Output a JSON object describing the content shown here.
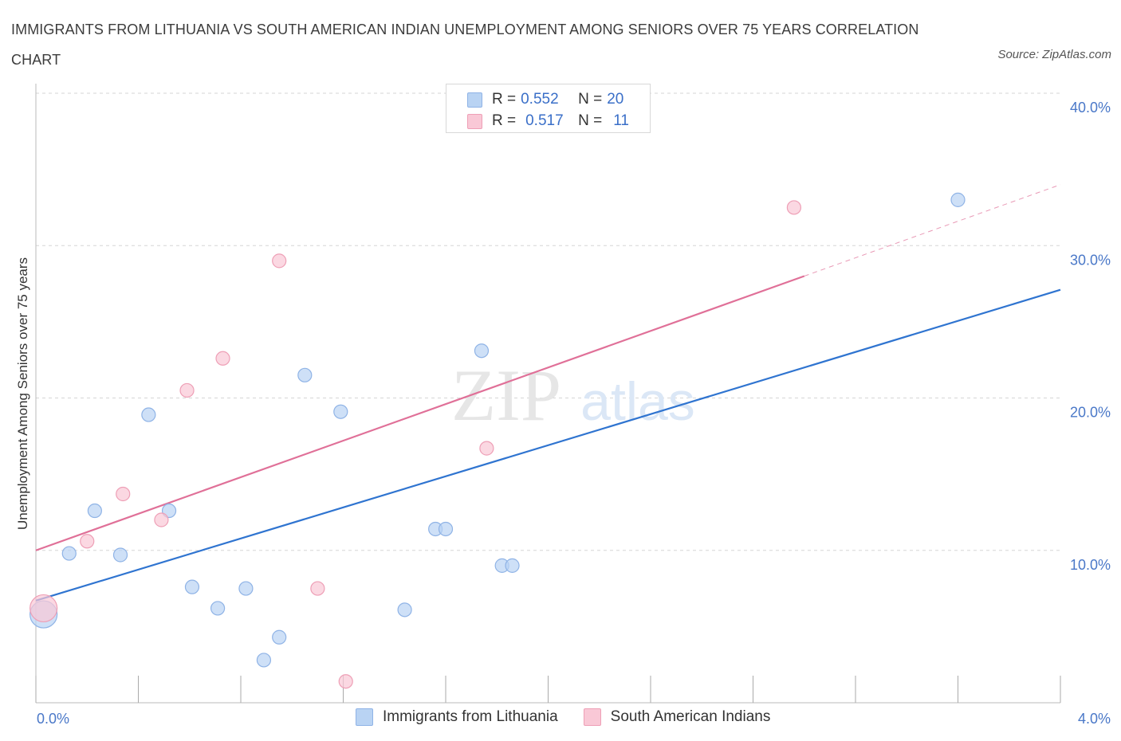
{
  "title": "IMMIGRANTS FROM LITHUANIA VS SOUTH AMERICAN INDIAN UNEMPLOYMENT AMONG SENIORS OVER 75 YEARS CORRELATION CHART",
  "source": "Source: ZipAtlas.com",
  "watermark": {
    "zip": "ZIP",
    "atlas": "atlas"
  },
  "colors": {
    "blue_fill": "#b9d3f3",
    "blue_stroke": "#8fb3e6",
    "blue_line": "#2f74d0",
    "pink_fill": "#f9c8d6",
    "pink_stroke": "#ee9fb6",
    "pink_line": "#e07098",
    "grid": "#d6d6d6",
    "axis_label": "#4a78c8"
  },
  "legend": {
    "rows": [
      {
        "r_label": "R = ",
        "r_value": "0.552",
        "n_label": "N = ",
        "n_value": "20"
      },
      {
        "r_label": "R = ",
        "r_value": "0.517",
        "n_label": "N = ",
        "n_value": "11"
      }
    ]
  },
  "chart_data": {
    "type": "scatter",
    "title": "IMMIGRANTS FROM LITHUANIA VS SOUTH AMERICAN INDIAN UNEMPLOYMENT AMONG SENIORS OVER 75 YEARS CORRELATION CHART",
    "xlabel": "",
    "ylabel": "Unemployment Among Seniors over 75 years",
    "xlim": [
      0.0,
      4.0
    ],
    "ylim": [
      0.0,
      40.0
    ],
    "x_tick_labels": [
      "0.0%",
      "4.0%"
    ],
    "y_ticks": [
      10.0,
      20.0,
      30.0,
      40.0
    ],
    "y_tick_labels": [
      "10.0%",
      "20.0%",
      "30.0%",
      "40.0%"
    ],
    "grid": true,
    "series": [
      {
        "name": "Immigrants from Lithuania",
        "color": "#b9d3f3",
        "points": [
          {
            "x": 0.03,
            "y": 5.8,
            "size": "large"
          },
          {
            "x": 0.13,
            "y": 9.8
          },
          {
            "x": 0.23,
            "y": 12.6
          },
          {
            "x": 0.33,
            "y": 9.7
          },
          {
            "x": 0.44,
            "y": 18.9
          },
          {
            "x": 0.52,
            "y": 12.6
          },
          {
            "x": 0.61,
            "y": 7.6
          },
          {
            "x": 0.71,
            "y": 6.2
          },
          {
            "x": 0.82,
            "y": 7.5
          },
          {
            "x": 0.89,
            "y": 2.8
          },
          {
            "x": 0.95,
            "y": 4.3
          },
          {
            "x": 1.05,
            "y": 21.5
          },
          {
            "x": 1.19,
            "y": 19.1
          },
          {
            "x": 1.44,
            "y": 6.1
          },
          {
            "x": 1.56,
            "y": 11.4
          },
          {
            "x": 1.6,
            "y": 11.4
          },
          {
            "x": 1.74,
            "y": 23.1
          },
          {
            "x": 1.82,
            "y": 9.0
          },
          {
            "x": 1.86,
            "y": 9.0
          },
          {
            "x": 3.6,
            "y": 33.0
          }
        ],
        "trend": {
          "x": [
            0.0,
            4.0
          ],
          "y": [
            6.7,
            27.1
          ]
        }
      },
      {
        "name": "South American Indians",
        "color": "#f9c8d6",
        "points": [
          {
            "x": 0.03,
            "y": 6.2,
            "size": "large"
          },
          {
            "x": 0.2,
            "y": 10.6
          },
          {
            "x": 0.34,
            "y": 13.7
          },
          {
            "x": 0.49,
            "y": 12.0
          },
          {
            "x": 0.59,
            "y": 20.5
          },
          {
            "x": 0.73,
            "y": 22.6
          },
          {
            "x": 0.95,
            "y": 29.0
          },
          {
            "x": 1.1,
            "y": 7.5
          },
          {
            "x": 1.21,
            "y": 1.4
          },
          {
            "x": 1.76,
            "y": 16.7
          },
          {
            "x": 2.96,
            "y": 32.5
          }
        ],
        "trend": {
          "x": [
            0.0,
            3.0
          ],
          "y": [
            10.0,
            28.0
          ]
        },
        "trend_extension": {
          "x": [
            3.0,
            4.0
          ],
          "y": [
            28.0,
            34.0
          ]
        }
      }
    ]
  }
}
